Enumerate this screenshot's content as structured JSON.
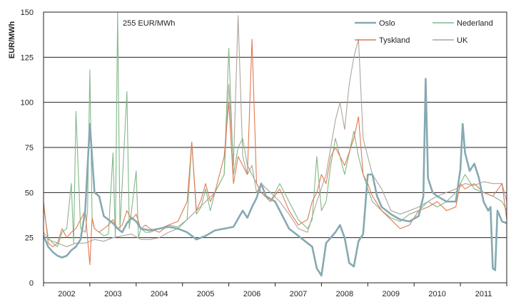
{
  "chart_data": {
    "type": "line",
    "title": "",
    "xlabel": "",
    "ylabel": "EUR/MWh",
    "ylim": [
      0,
      150
    ],
    "yticks": [
      0,
      25,
      50,
      75,
      100,
      125,
      150
    ],
    "xlim": [
      2001.5,
      2011.5
    ],
    "year_labels": [
      "2002",
      "2003",
      "2004",
      "2005",
      "2006",
      "2007",
      "2008",
      "2009",
      "2010",
      "2011"
    ],
    "annotation": "255 EUR/MWh",
    "grid": true,
    "legend_position": "top-right",
    "series": [
      {
        "name": "Oslo",
        "color": "#86a9b2",
        "x": [
          2001.5,
          2001.6,
          2001.7,
          2001.8,
          2001.9,
          2002.0,
          2002.1,
          2002.2,
          2002.3,
          2002.4,
          2002.5,
          2002.6,
          2002.7,
          2002.8,
          2002.9,
          2003.0,
          2003.1,
          2003.2,
          2003.3,
          2003.4,
          2003.5,
          2003.6,
          2003.8,
          2004.0,
          2004.2,
          2004.4,
          2004.6,
          2004.8,
          2005.0,
          2005.2,
          2005.4,
          2005.6,
          2005.8,
          2005.9,
          2006.0,
          2006.1,
          2006.2,
          2006.3,
          2006.5,
          2006.6,
          2006.8,
          2007.0,
          2007.2,
          2007.3,
          2007.4,
          2007.5,
          2007.6,
          2007.8,
          2007.9,
          2008.0,
          2008.1,
          2008.2,
          2008.3,
          2008.4,
          2008.5,
          2008.6,
          2008.7,
          2008.8,
          2009.0,
          2009.2,
          2009.4,
          2009.6,
          2009.7,
          2009.75,
          2009.8,
          2009.9,
          2010.0,
          2010.2,
          2010.4,
          2010.5,
          2010.55,
          2010.6,
          2010.7,
          2010.8,
          2010.9,
          2011.0,
          2011.1,
          2011.15,
          2011.2,
          2011.25,
          2011.3,
          2011.4,
          2011.5
        ],
        "values": [
          26,
          20,
          17,
          15,
          14,
          15,
          18,
          20,
          24,
          40,
          88,
          50,
          48,
          37,
          35,
          33,
          30,
          28,
          33,
          36,
          34,
          30,
          29,
          30,
          31,
          30,
          28,
          24,
          26,
          29,
          30,
          31,
          40,
          36,
          42,
          47,
          55,
          48,
          45,
          40,
          30,
          26,
          22,
          20,
          8,
          4,
          22,
          28,
          32,
          25,
          11,
          9,
          23,
          27,
          60,
          60,
          48,
          42,
          38,
          35,
          34,
          37,
          48,
          113,
          58,
          50,
          48,
          45,
          45,
          63,
          88,
          72,
          62,
          66,
          58,
          45,
          40,
          42,
          8,
          7,
          40,
          34,
          33
        ]
      },
      {
        "name": "Nederland",
        "color": "#82b888",
        "x": [
          2001.5,
          2001.6,
          2001.7,
          2001.8,
          2001.9,
          2002.0,
          2002.1,
          2002.15,
          2002.2,
          2002.3,
          2002.4,
          2002.45,
          2002.5,
          2002.55,
          2002.6,
          2002.7,
          2002.8,
          2002.9,
          2003.0,
          2003.05,
          2003.1,
          2003.15,
          2003.2,
          2003.3,
          2003.35,
          2003.4,
          2003.5,
          2003.55,
          2003.6,
          2003.7,
          2003.8,
          2004.0,
          2004.2,
          2004.4,
          2004.6,
          2004.7,
          2004.8,
          2004.9,
          2005.0,
          2005.1,
          2005.2,
          2005.3,
          2005.4,
          2005.5,
          2005.6,
          2005.7,
          2005.8,
          2005.9,
          2006.0,
          2006.2,
          2006.4,
          2006.6,
          2006.8,
          2007.0,
          2007.2,
          2007.3,
          2007.4,
          2007.5,
          2007.6,
          2007.7,
          2007.8,
          2008.0,
          2008.2,
          2008.3,
          2008.4,
          2008.5,
          2008.6,
          2008.8,
          2009.0,
          2009.2,
          2009.4,
          2009.6,
          2009.8,
          2010.0,
          2010.2,
          2010.4,
          2010.6,
          2010.8,
          2011.0,
          2011.2,
          2011.4,
          2011.5
        ],
        "values": [
          42,
          25,
          22,
          20,
          28,
          30,
          55,
          22,
          95,
          30,
          28,
          40,
          118,
          35,
          30,
          28,
          26,
          27,
          72,
          25,
          150,
          30,
          55,
          106,
          30,
          40,
          62,
          25,
          30,
          28,
          28,
          30,
          32,
          31,
          35,
          78,
          38,
          42,
          52,
          40,
          50,
          55,
          60,
          130,
          60,
          75,
          80,
          65,
          60,
          50,
          45,
          55,
          45,
          35,
          30,
          35,
          70,
          40,
          45,
          65,
          80,
          60,
          84,
          70,
          60,
          52,
          45,
          40,
          36,
          34,
          38,
          40,
          45,
          42,
          45,
          50,
          60,
          52,
          50,
          48,
          45,
          40
        ]
      },
      {
        "name": "Tyskland",
        "color": "#e07a52",
        "x": [
          2001.5,
          2001.6,
          2001.7,
          2001.8,
          2001.9,
          2002.0,
          2002.1,
          2002.2,
          2002.3,
          2002.4,
          2002.5,
          2002.55,
          2002.6,
          2002.7,
          2002.8,
          2002.9,
          2003.0,
          2003.1,
          2003.2,
          2003.3,
          2003.4,
          2003.5,
          2003.6,
          2003.7,
          2003.8,
          2004.0,
          2004.2,
          2004.4,
          2004.6,
          2004.7,
          2004.8,
          2004.9,
          2005.0,
          2005.1,
          2005.2,
          2005.3,
          2005.4,
          2005.5,
          2005.6,
          2005.7,
          2005.8,
          2005.9,
          2006.0,
          2006.1,
          2006.2,
          2006.4,
          2006.6,
          2006.8,
          2007.0,
          2007.2,
          2007.3,
          2007.4,
          2007.5,
          2007.6,
          2007.7,
          2007.8,
          2008.0,
          2008.2,
          2008.3,
          2008.4,
          2008.5,
          2008.6,
          2008.8,
          2009.0,
          2009.2,
          2009.4,
          2009.6,
          2009.8,
          2010.0,
          2010.2,
          2010.4,
          2010.5,
          2010.6,
          2010.8,
          2011.0,
          2011.2,
          2011.4,
          2011.5
        ],
        "values": [
          45,
          22,
          20,
          22,
          30,
          25,
          28,
          30,
          35,
          40,
          10,
          36,
          30,
          28,
          30,
          32,
          35,
          30,
          32,
          40,
          35,
          38,
          30,
          32,
          30,
          28,
          32,
          34,
          45,
          78,
          40,
          46,
          55,
          45,
          50,
          60,
          70,
          100,
          55,
          70,
          65,
          60,
          135,
          55,
          50,
          45,
          52,
          40,
          32,
          35,
          45,
          50,
          60,
          55,
          70,
          75,
          65,
          80,
          92,
          60,
          55,
          48,
          40,
          35,
          30,
          32,
          40,
          42,
          45,
          40,
          42,
          55,
          52,
          55,
          50,
          48,
          55,
          35
        ]
      },
      {
        "name": "UK",
        "color": "#aea39c",
        "x": [
          2001.5,
          2001.6,
          2001.8,
          2002.0,
          2002.2,
          2002.4,
          2002.6,
          2002.8,
          2003.0,
          2003.2,
          2003.4,
          2003.6,
          2003.8,
          2004.0,
          2004.2,
          2004.4,
          2004.6,
          2004.8,
          2005.0,
          2005.2,
          2005.4,
          2005.5,
          2005.6,
          2005.7,
          2005.8,
          2005.9,
          2006.0,
          2006.1,
          2006.2,
          2006.4,
          2006.6,
          2006.8,
          2007.0,
          2007.2,
          2007.4,
          2007.6,
          2007.8,
          2007.9,
          2008.0,
          2008.1,
          2008.2,
          2008.3,
          2008.4,
          2008.5,
          2008.6,
          2008.8,
          2009.0,
          2009.2,
          2009.4,
          2009.6,
          2009.8,
          2010.0,
          2010.2,
          2010.4,
          2010.6,
          2010.8,
          2011.0,
          2011.2,
          2011.4,
          2011.5
        ],
        "values": [
          28,
          24,
          22,
          20,
          22,
          22,
          24,
          23,
          25,
          26,
          27,
          24,
          24,
          25,
          28,
          30,
          35,
          40,
          45,
          50,
          60,
          110,
          65,
          148,
          70,
          60,
          65,
          50,
          55,
          50,
          45,
          38,
          30,
          28,
          45,
          60,
          90,
          100,
          85,
          110,
          125,
          135,
          80,
          70,
          60,
          52,
          40,
          38,
          40,
          42,
          45,
          48,
          50,
          52,
          55,
          54,
          56,
          55,
          55,
          45
        ]
      }
    ]
  }
}
